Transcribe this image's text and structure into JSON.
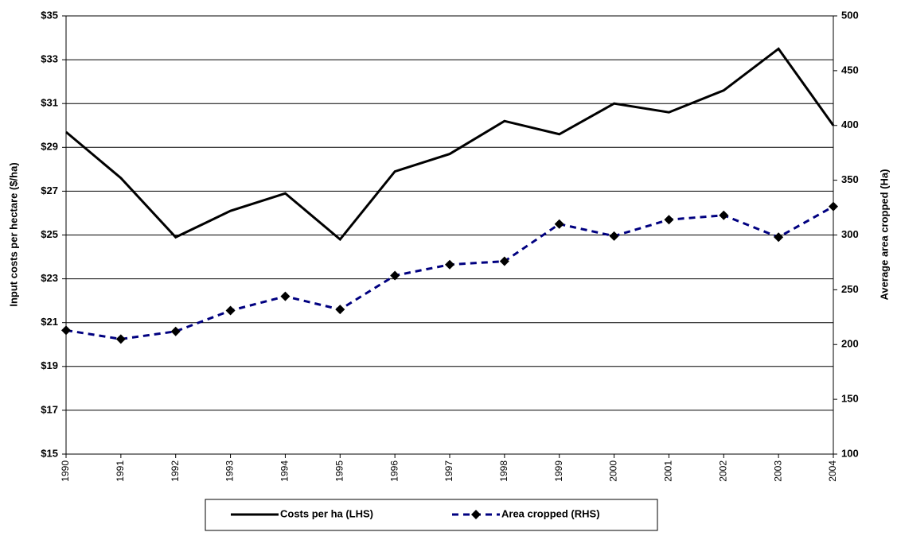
{
  "chart_data": {
    "type": "line",
    "y_label": "Input costs per hectare ($/ha)",
    "y2_label": "Average area cropped (Ha)",
    "categories": [
      "1990",
      "1991",
      "1992",
      "1993",
      "1994",
      "1995",
      "1996",
      "1997",
      "1998",
      "1999",
      "2000",
      "2001",
      "2002",
      "2003",
      "2004"
    ],
    "series": [
      {
        "name": "Costs per ha (LHS)",
        "color": "#000000",
        "dash": false,
        "marker": false,
        "values": [
          29.7,
          27.6,
          24.9,
          26.1,
          26.9,
          24.8,
          27.9,
          28.7,
          30.2,
          29.6,
          31.0,
          30.6,
          31.6,
          33.5,
          30.0
        ]
      },
      {
        "name": "Area cropped (RHS)",
        "color": "#000080",
        "dash": true,
        "marker": true,
        "axis": "y2",
        "values": [
          213,
          205,
          212,
          231,
          244,
          232,
          263,
          273,
          276,
          310,
          299,
          314,
          318,
          298,
          326
        ]
      }
    ],
    "ylim": [
      15,
      35
    ],
    "yticks": [
      {
        "value": 15,
        "label": "$15"
      },
      {
        "value": 17,
        "label": "$17"
      },
      {
        "value": 19,
        "label": "$19"
      },
      {
        "value": 21,
        "label": "$21"
      },
      {
        "value": 23,
        "label": "$23"
      },
      {
        "value": 25,
        "label": "$25"
      },
      {
        "value": 27,
        "label": "$27"
      },
      {
        "value": 29,
        "label": "$29"
      },
      {
        "value": 31,
        "label": "$31"
      },
      {
        "value": 33,
        "label": "$33"
      },
      {
        "value": 35,
        "label": "$35"
      }
    ],
    "y2lim": [
      100,
      500
    ],
    "y2ticks": [
      100,
      150,
      200,
      250,
      300,
      350,
      400,
      450,
      500
    ],
    "grid": true
  }
}
